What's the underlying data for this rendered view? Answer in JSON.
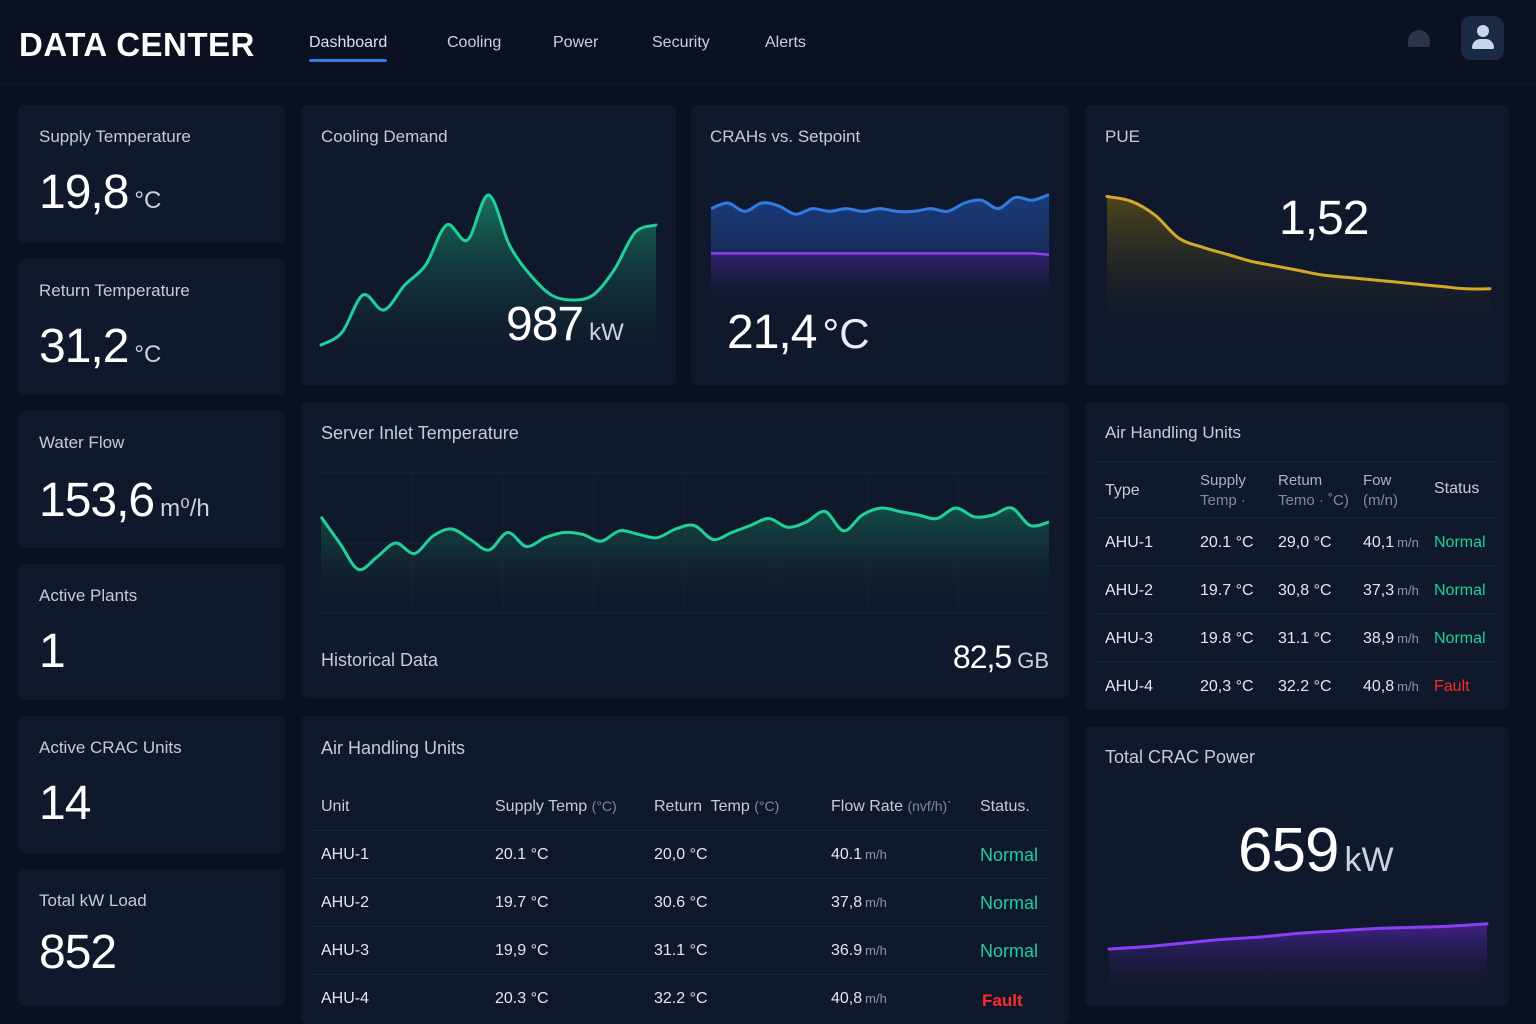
{
  "app": {
    "title": "DATA CENTER",
    "nav": [
      {
        "label": "Dashboard",
        "active": true
      },
      {
        "label": "Cooling",
        "active": false
      },
      {
        "label": "Power",
        "active": false
      },
      {
        "label": "Security",
        "active": false
      },
      {
        "label": "Alerts",
        "active": false
      }
    ],
    "icons": [
      "bell-icon",
      "user-icon"
    ]
  },
  "colors": {
    "accent_blue": "#2f7de1",
    "green": "#1fd199",
    "purple": "#8b3ff5",
    "gold": "#d4a92a",
    "fault": "#ff2a2a",
    "background": "#0a1020",
    "card": "#10182b"
  },
  "kpis": [
    {
      "label": "Supply Temperature",
      "value": "19,8",
      "unit": "°C"
    },
    {
      "label": "Return Temperature",
      "value": "31,2",
      "unit": "°C"
    },
    {
      "label": "Water Flow",
      "value": "153,6",
      "unit": "m⁰/h"
    },
    {
      "label": "Active Plants",
      "value": "1",
      "unit": ""
    },
    {
      "label": "Active CRAC Units",
      "value": "14",
      "unit": ""
    },
    {
      "label": "Total kW Load",
      "value": "852",
      "unit": ""
    }
  ],
  "cooling_demand": {
    "title": "Cooling Demand",
    "value": "987",
    "unit": "kW"
  },
  "crahs": {
    "title": "CRAHs vs. Setpoint",
    "value": "21,4",
    "unit": "°C"
  },
  "pue": {
    "title": "PUE",
    "value": "1,52"
  },
  "server_inlet": {
    "title": "Server Inlet Temperature",
    "footer_label": "Historical Data",
    "footer_value": "82,5",
    "footer_unit": "GB"
  },
  "ahu_table_main": {
    "title": "Air Handling Units",
    "headers": {
      "unit": "Unit",
      "supply": "Supply Temp",
      "supply_unit": "(°C)",
      "return": "Return  Temp",
      "return_unit": "(°C)",
      "flow": "Flow Rate",
      "flow_unit": "(nvf/h)`",
      "status": "Status."
    },
    "rows": [
      {
        "unit": "AHU-1",
        "supply": "20.1 °C",
        "return": "20,0 °C",
        "flow": "40.1",
        "flow_unit": "m/h",
        "status": "Normal"
      },
      {
        "unit": "AHU-2",
        "supply": "19.7 °C",
        "return": "30.6 °C",
        "flow": "37,8",
        "flow_unit": "m/h",
        "status": "Normal"
      },
      {
        "unit": "AHU-3",
        "supply": "19,9 °C",
        "return": "31.1 °C",
        "flow": "36.9",
        "flow_unit": "m/h",
        "status": "Normal"
      },
      {
        "unit": "AHU-4",
        "supply": "20.3 °C",
        "return": "32.2 °C",
        "flow": "40,8",
        "flow_unit": "m/h",
        "status": "Fault"
      }
    ]
  },
  "ahu_table_side": {
    "title": "Air Handling Units",
    "headers": {
      "type": "Type",
      "supply_1": "Supply",
      "supply_2": "Temp ·",
      "return_1": "Retum",
      "return_2": "Temo · ˚C)",
      "flow_1": "Fow",
      "flow_2": "(m/n)",
      "status": "Status"
    },
    "rows": [
      {
        "unit": "AHU-1",
        "supply": "20.1 °C",
        "return": "29,0 °C",
        "flow": "40,1",
        "flow_unit": "m/n",
        "status": "Normal"
      },
      {
        "unit": "AHU-2",
        "supply": "19.7 °C",
        "return": "30,8 °C",
        "flow": "37,3",
        "flow_unit": "m/h",
        "status": "Normal"
      },
      {
        "unit": "AHU-3",
        "supply": "19.8 °C",
        "return": "31.1 °C",
        "flow": "38,9",
        "flow_unit": "m/h",
        "status": "Normal"
      },
      {
        "unit": "AHU-4",
        "supply": "20,3 °C",
        "return": "32.2 °C",
        "flow": "40,8",
        "flow_unit": "m/h",
        "status": "Fault"
      }
    ]
  },
  "total_crac": {
    "title": "Total CRAC Power",
    "value": "659",
    "unit": "kW"
  },
  "chart_data": [
    {
      "type": "area",
      "name": "cooling-demand",
      "title": "Cooling Demand",
      "x": [
        0,
        1,
        2,
        3,
        4,
        5,
        6,
        7,
        8,
        9,
        10,
        11,
        12,
        13,
        14,
        15,
        16
      ],
      "values": [
        10,
        15,
        30,
        24,
        34,
        42,
        58,
        52,
        70,
        50,
        38,
        30,
        28,
        30,
        40,
        55,
        58
      ],
      "ylim": [
        0,
        80
      ],
      "grid": false
    },
    {
      "type": "line",
      "name": "crahs-vs-setpoint",
      "title": "CRAHs vs. Setpoint",
      "x": [
        0,
        1,
        2,
        3,
        4,
        5,
        6,
        7,
        8,
        9,
        10,
        11,
        12,
        13,
        14,
        15,
        16,
        17,
        18,
        19,
        20
      ],
      "series": [
        {
          "values": [
            21.8,
            22.0,
            21.7,
            22.0,
            21.9,
            21.6,
            21.8,
            21.7,
            21.8,
            21.7,
            21.8,
            21.7,
            21.7,
            21.8,
            21.7,
            22.0,
            22.1,
            21.8,
            22.2,
            22.1,
            22.3
          ]
        },
        {
          "values": [
            20.2,
            20.2,
            20.2,
            20.2,
            20.2,
            20.2,
            20.2,
            20.2,
            20.2,
            20.2,
            20.2,
            20.2,
            20.2,
            20.2,
            20.2,
            20.2,
            20.2,
            20.2,
            20.2,
            20.2,
            20.15
          ]
        }
      ],
      "ylim": [
        18,
        23
      ],
      "grid": false
    },
    {
      "type": "area",
      "name": "pue",
      "title": "PUE",
      "x": [
        0,
        1,
        2,
        3,
        4,
        5,
        6,
        7,
        8,
        9,
        10,
        11,
        12,
        13,
        14,
        15,
        16
      ],
      "values": [
        1.8,
        1.78,
        1.72,
        1.62,
        1.58,
        1.55,
        1.52,
        1.5,
        1.48,
        1.46,
        1.45,
        1.44,
        1.43,
        1.42,
        1.41,
        1.4,
        1.4
      ],
      "ylim": [
        1.2,
        1.85
      ],
      "grid": false
    },
    {
      "type": "line",
      "name": "server-inlet",
      "title": "Server Inlet Temperature",
      "x": [
        0,
        1,
        2,
        3,
        4,
        5,
        6,
        7,
        8,
        9,
        10,
        11,
        12,
        13,
        14,
        15,
        16,
        17,
        18,
        19,
        20,
        21,
        22,
        23,
        24,
        25,
        26,
        27,
        28,
        29,
        30,
        31,
        32,
        33,
        34,
        35,
        36,
        37,
        38,
        39
      ],
      "values": [
        25.5,
        24.0,
        22.5,
        23.2,
        24.0,
        23.4,
        24.4,
        24.8,
        24.2,
        23.6,
        24.6,
        23.8,
        24.3,
        24.6,
        24.5,
        24.1,
        24.7,
        24.5,
        24.3,
        24.8,
        25.0,
        24.2,
        24.6,
        25.0,
        25.4,
        24.9,
        25.2,
        25.8,
        24.7,
        25.6,
        26.0,
        25.8,
        25.6,
        25.4,
        26.0,
        25.5,
        25.6,
        26.0,
        25.0,
        25.2
      ],
      "ylim": [
        20,
        28
      ],
      "grid": true
    },
    {
      "type": "area",
      "name": "total-crac-power",
      "title": "Total CRAC Power",
      "x": [
        0,
        1,
        2,
        3,
        4,
        5,
        6,
        7,
        8,
        9,
        10
      ],
      "values": [
        640,
        642,
        645,
        648,
        650,
        653,
        655,
        657,
        658,
        659,
        661
      ],
      "ylim": [
        600,
        700
      ],
      "grid": false
    }
  ]
}
